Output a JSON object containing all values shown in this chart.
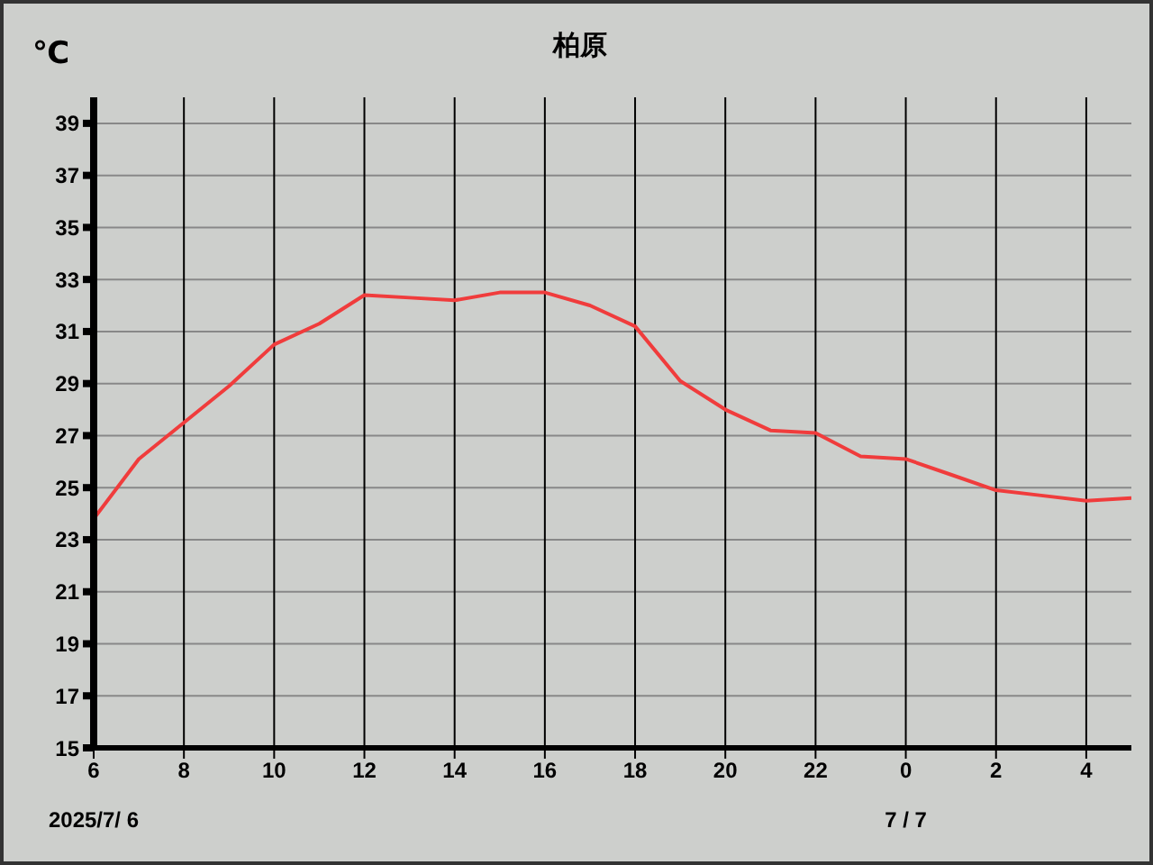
{
  "chart_data": {
    "type": "line",
    "title": "柏原",
    "ylabel": "℃",
    "x": [
      "2025-07-06T06:00",
      "2025-07-06T07:00",
      "2025-07-06T08:00",
      "2025-07-06T09:00",
      "2025-07-06T10:00",
      "2025-07-06T11:00",
      "2025-07-06T12:00",
      "2025-07-06T13:00",
      "2025-07-06T14:00",
      "2025-07-06T15:00",
      "2025-07-06T16:00",
      "2025-07-06T17:00",
      "2025-07-06T18:00",
      "2025-07-06T19:00",
      "2025-07-06T20:00",
      "2025-07-06T21:00",
      "2025-07-06T22:00",
      "2025-07-06T23:00",
      "2025-07-07T00:00",
      "2025-07-07T01:00",
      "2025-07-07T02:00",
      "2025-07-07T03:00",
      "2025-07-07T04:00",
      "2025-07-07T05:00"
    ],
    "series": [
      {
        "color": "#f03c3c",
        "values": [
          23.8,
          26.1,
          27.5,
          28.9,
          30.5,
          31.3,
          32.4,
          32.3,
          32.2,
          32.5,
          32.5,
          32.0,
          31.2,
          29.1,
          28.0,
          27.2,
          27.1,
          26.2,
          26.1,
          25.5,
          24.9,
          24.7,
          24.5,
          24.6
        ]
      }
    ],
    "xlim": [
      "2025-07-06T06:00",
      "2025-07-07T05:00"
    ],
    "xticks": [
      {
        "value": "2025-07-06T06:00",
        "label": "6"
      },
      {
        "value": "2025-07-06T08:00",
        "label": "8"
      },
      {
        "value": "2025-07-06T10:00",
        "label": "10"
      },
      {
        "value": "2025-07-06T12:00",
        "label": "12"
      },
      {
        "value": "2025-07-06T14:00",
        "label": "14"
      },
      {
        "value": "2025-07-06T16:00",
        "label": "16"
      },
      {
        "value": "2025-07-06T18:00",
        "label": "18"
      },
      {
        "value": "2025-07-06T20:00",
        "label": "20"
      },
      {
        "value": "2025-07-06T22:00",
        "label": "22"
      },
      {
        "value": "2025-07-07T00:00",
        "label": "0"
      },
      {
        "value": "2025-07-07T02:00",
        "label": "2"
      },
      {
        "value": "2025-07-07T04:00",
        "label": "4"
      }
    ],
    "ylim": [
      15,
      40
    ],
    "yticks": [
      15,
      17,
      19,
      21,
      23,
      25,
      27,
      29,
      31,
      33,
      35,
      37,
      39
    ],
    "grid": true,
    "legend": false,
    "annotations": [
      "2025/7/ 6",
      "7 / 7"
    ]
  }
}
